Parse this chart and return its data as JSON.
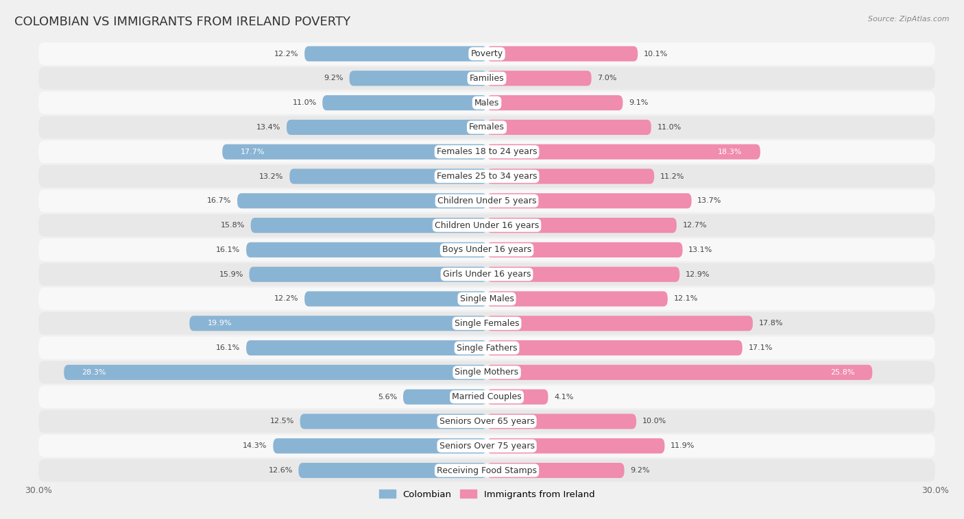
{
  "title": "COLOMBIAN VS IMMIGRANTS FROM IRELAND POVERTY",
  "source": "Source: ZipAtlas.com",
  "categories": [
    "Poverty",
    "Families",
    "Males",
    "Females",
    "Females 18 to 24 years",
    "Females 25 to 34 years",
    "Children Under 5 years",
    "Children Under 16 years",
    "Boys Under 16 years",
    "Girls Under 16 years",
    "Single Males",
    "Single Females",
    "Single Fathers",
    "Single Mothers",
    "Married Couples",
    "Seniors Over 65 years",
    "Seniors Over 75 years",
    "Receiving Food Stamps"
  ],
  "colombian_values": [
    12.2,
    9.2,
    11.0,
    13.4,
    17.7,
    13.2,
    16.7,
    15.8,
    16.1,
    15.9,
    12.2,
    19.9,
    16.1,
    28.3,
    5.6,
    12.5,
    14.3,
    12.6
  ],
  "ireland_values": [
    10.1,
    7.0,
    9.1,
    11.0,
    18.3,
    11.2,
    13.7,
    12.7,
    13.1,
    12.9,
    12.1,
    17.8,
    17.1,
    25.8,
    4.1,
    10.0,
    11.9,
    9.2
  ],
  "colombian_color": "#8ab4d4",
  "ireland_color": "#f08cad",
  "highlight_colombian": [
    4,
    11,
    13
  ],
  "highlight_ireland": [
    4,
    13
  ],
  "max_value": 30.0,
  "background_color": "#f0f0f0",
  "row_bg_even": "#f8f8f8",
  "row_bg_odd": "#e8e8e8",
  "title_fontsize": 13,
  "label_fontsize": 9,
  "value_fontsize": 8,
  "legend_labels": [
    "Colombian",
    "Immigrants from Ireland"
  ]
}
